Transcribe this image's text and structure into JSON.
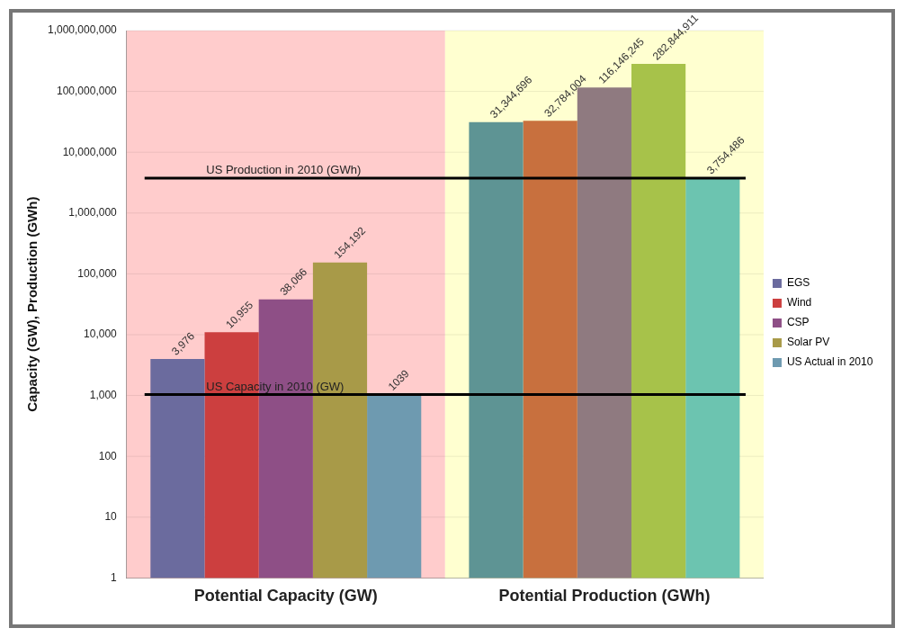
{
  "chart_data": {
    "type": "bar",
    "ylabel": "Capacity (GW), Production (GWh)",
    "categories": [
      "Potential Capacity (GW)",
      "Potential Production (GWh)"
    ],
    "series": [
      {
        "name": "EGS",
        "colors": [
          "#6b6b9e",
          "#5e9494"
        ],
        "values": [
          3976,
          31344696
        ],
        "value_labels": [
          "3,976",
          "31,344,696"
        ]
      },
      {
        "name": "Wind",
        "colors": [
          "#cc3f3f",
          "#c8703e"
        ],
        "values": [
          10955,
          32784004
        ],
        "value_labels": [
          "10,955",
          "32,784,004"
        ]
      },
      {
        "name": "CSP",
        "colors": [
          "#8e4f86",
          "#8f7a80"
        ],
        "values": [
          38066,
          116146245
        ],
        "value_labels": [
          "38,066",
          "116,146,245"
        ]
      },
      {
        "name": "Solar PV",
        "colors": [
          "#a89a48",
          "#a7c24a"
        ],
        "values": [
          154192,
          282844911
        ],
        "value_labels": [
          "154,192",
          "282,844,911"
        ]
      },
      {
        "name": "US Actual in 2010",
        "colors": [
          "#6e9ab0",
          "#6cc4b0"
        ],
        "values": [
          1039,
          3754486
        ],
        "value_labels": [
          "1039",
          "3,754,486"
        ]
      }
    ],
    "log": "y",
    "ylim": [
      1,
      1000000000
    ],
    "yticks": [
      1,
      10,
      100,
      {
        "value": 1000,
        "label": "1,000"
      },
      {
        "value": 10000,
        "label": "10,000"
      },
      {
        "value": 100000,
        "label": "100,000"
      },
      {
        "value": 1000000,
        "label": "1,000,000"
      },
      {
        "value": 10000000,
        "label": "10,000,000"
      },
      {
        "value": 100000000,
        "label": "100,000,000"
      },
      {
        "value": 1000000000,
        "label": "1,000,000,000"
      }
    ],
    "ref_lines": [
      {
        "axis": "y",
        "value": 1039,
        "label": "US Capacity in 2010 (GW)",
        "color": "#000000"
      },
      {
        "axis": "y",
        "value": 3754486,
        "label": "US Production in 2010 (GWh)",
        "color": "#000000"
      }
    ],
    "bands": [
      {
        "axis": "x",
        "from": "Potential Capacity (GW)",
        "to": "Potential Capacity (GW)",
        "color": "#ffcccc"
      },
      {
        "axis": "x",
        "from": "Potential Production (GWh)",
        "to": "Potential Production (GWh)",
        "color": "#ffffd0"
      }
    ],
    "grid": "y",
    "legend": "right"
  }
}
